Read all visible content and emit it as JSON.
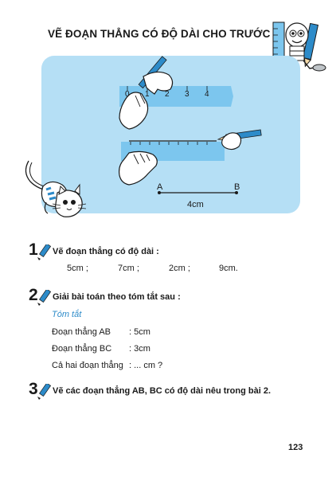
{
  "title": "VẼ ĐOẠN THẲNG CÓ ĐỘ DÀI CHO TRƯỚC",
  "illustration": {
    "ruler_ticks": [
      "0",
      "1",
      "2",
      "3",
      "4"
    ],
    "point_a": "A",
    "point_b": "B",
    "segment_length": "4cm"
  },
  "exercises": [
    {
      "number": "1",
      "text": "Vẽ đoạn thẳng có độ dài :",
      "values": [
        "5cm ;",
        "7cm ;",
        "2cm ;",
        "9cm."
      ]
    },
    {
      "number": "2",
      "text": "Giải bài toán theo tóm tắt sau :",
      "summary": {
        "heading": "Tóm tắt",
        "rows": [
          {
            "label": "Đoạn thẳng AB",
            "value": ":  5cm"
          },
          {
            "label": "Đoạn thẳng BC",
            "value": ":  3cm"
          },
          {
            "label": "Cả hai đoạn thẳng",
            "value": ": ... cm ?"
          }
        ]
      }
    },
    {
      "number": "3",
      "text": "Vẽ các đoạn thẳng AB, BC có độ dài nêu trong bài 2."
    }
  ],
  "page_number": "123",
  "colors": {
    "panel": "#b5dff5",
    "ruler": "#7cc6ee",
    "accent": "#2d8bc9"
  }
}
